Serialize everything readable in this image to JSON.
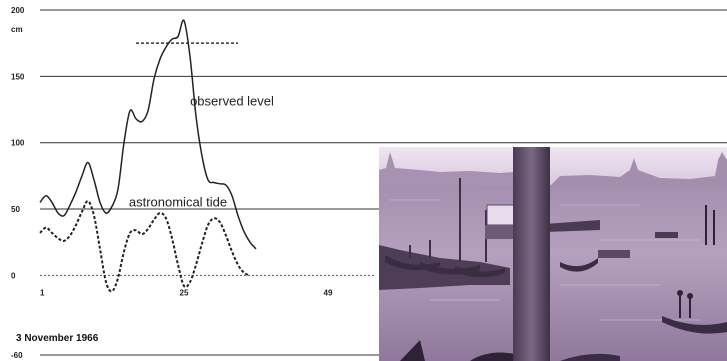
{
  "chart_data": {
    "type": "line",
    "ylabel": "cm",
    "ylim": [
      -60,
      200
    ],
    "yticks": [
      -60,
      0,
      50,
      100,
      150,
      200
    ],
    "xlim": [
      1,
      57
    ],
    "xticks": [
      1,
      25,
      49
    ],
    "grid": true,
    "annotation": "3 November 1966",
    "reference_line": {
      "style": "dotted",
      "y": 175,
      "x": [
        17,
        34
      ]
    },
    "series": [
      {
        "name": "observed level",
        "style": "solid",
        "x": [
          1,
          2,
          3,
          4,
          5,
          6,
          7,
          8,
          9,
          10,
          11,
          12,
          13,
          14,
          15,
          16,
          17,
          18,
          19,
          20,
          21,
          22,
          23,
          24,
          25,
          26,
          27,
          28,
          29,
          30,
          31,
          32,
          33,
          34,
          35,
          36,
          37
        ],
        "values": [
          55,
          60,
          55,
          47,
          45,
          53,
          63,
          75,
          85,
          72,
          55,
          47,
          52,
          65,
          100,
          124,
          118,
          116,
          124,
          148,
          163,
          172,
          178,
          180,
          192,
          165,
          120,
          90,
          72,
          70,
          69,
          68,
          60,
          45,
          33,
          25,
          20
        ]
      },
      {
        "name": "astronomical tide",
        "style": "dotted",
        "x": [
          1,
          2,
          3,
          4,
          5,
          6,
          7,
          8,
          9,
          10,
          11,
          12,
          13,
          14,
          15,
          16,
          17,
          18,
          19,
          20,
          21,
          22,
          23,
          24,
          25,
          26,
          27,
          28,
          29,
          30,
          31,
          32,
          33,
          34,
          35,
          36
        ],
        "values": [
          32,
          36,
          32,
          28,
          26,
          30,
          38,
          48,
          56,
          45,
          20,
          -5,
          -12,
          -2,
          18,
          32,
          34,
          31,
          35,
          42,
          47,
          43,
          28,
          8,
          -8,
          -5,
          8,
          24,
          38,
          43,
          40,
          30,
          18,
          8,
          2,
          0
        ]
      }
    ]
  },
  "photo": {
    "subject": "flooded lagoon with gondolas",
    "tint": "#a88fb8"
  }
}
